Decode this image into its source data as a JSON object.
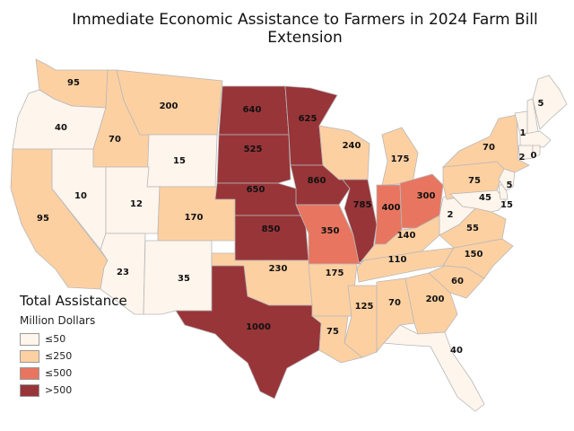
{
  "title": "Immediate Economic Assistance to Farmers in 2024 Farm Bill Extension",
  "legend": {
    "title": "Total Assistance",
    "subtitle": "Million Dollars",
    "items": [
      {
        "label": "≤50",
        "color": "#fef5ec"
      },
      {
        "label": "≤250",
        "color": "#fdd0a2"
      },
      {
        "label": "≤500",
        "color": "#e87560"
      },
      {
        "label": ">500",
        "color": "#983538"
      }
    ]
  },
  "states": [
    {
      "id": "WA",
      "value": 95
    },
    {
      "id": "OR",
      "value": 40
    },
    {
      "id": "CA",
      "value": 95
    },
    {
      "id": "NV",
      "value": 10
    },
    {
      "id": "ID",
      "value": 70
    },
    {
      "id": "MT",
      "value": 200
    },
    {
      "id": "WY",
      "value": 15
    },
    {
      "id": "UT",
      "value": 12
    },
    {
      "id": "AZ",
      "value": 23
    },
    {
      "id": "CO",
      "value": 170
    },
    {
      "id": "NM",
      "value": 35
    },
    {
      "id": "ND",
      "value": 640
    },
    {
      "id": "SD",
      "value": 525
    },
    {
      "id": "NE",
      "value": 650
    },
    {
      "id": "KS",
      "value": 850
    },
    {
      "id": "OK",
      "value": 230
    },
    {
      "id": "TX",
      "value": 1000
    },
    {
      "id": "MN",
      "value": 625
    },
    {
      "id": "IA",
      "value": 860
    },
    {
      "id": "MO",
      "value": 350
    },
    {
      "id": "AR",
      "value": 175
    },
    {
      "id": "LA",
      "value": 75
    },
    {
      "id": "WI",
      "value": 240
    },
    {
      "id": "IL",
      "value": 785
    },
    {
      "id": "MS",
      "value": 125
    },
    {
      "id": "MI",
      "value": 175
    },
    {
      "id": "IN",
      "value": 400
    },
    {
      "id": "OH",
      "value": 300
    },
    {
      "id": "KY",
      "value": 140
    },
    {
      "id": "TN",
      "value": 110
    },
    {
      "id": "AL",
      "value": 70
    },
    {
      "id": "GA",
      "value": 200
    },
    {
      "id": "FL",
      "value": 40
    },
    {
      "id": "SC",
      "value": 60
    },
    {
      "id": "NC",
      "value": 150
    },
    {
      "id": "VA",
      "value": 55
    },
    {
      "id": "WV",
      "value": 2
    },
    {
      "id": "PA",
      "value": 75
    },
    {
      "id": "NY",
      "value": 70
    },
    {
      "id": "VT",
      "value": 1
    },
    {
      "id": "NH",
      "value": 2
    },
    {
      "id": "ME",
      "value": 5
    },
    {
      "id": "MA",
      "value": 0
    },
    {
      "id": "NJ",
      "value": 5
    },
    {
      "id": "DE",
      "value": 45
    },
    {
      "id": "MD",
      "value": 15
    }
  ]
}
